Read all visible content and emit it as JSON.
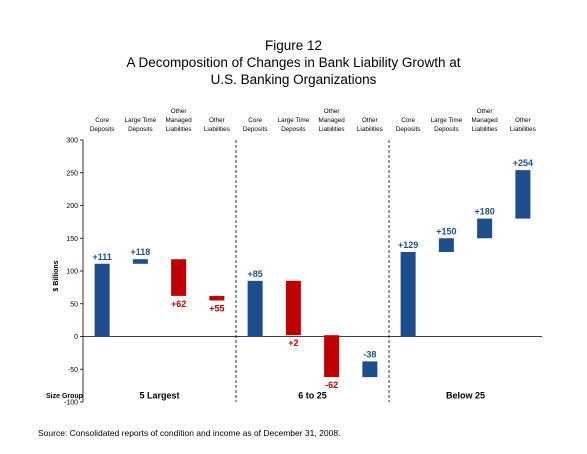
{
  "figure_label": "Figure 12",
  "title_line1": "A Decomposition of Changes in Bank Liability Growth at",
  "title_line2": "U.S. Banking Organizations",
  "source": "Source: Consolidated reports of condition and income as of December 31, 2008.",
  "colors": {
    "positive": "#1f4e8c",
    "negative": "#c00000",
    "axis": "#000000"
  },
  "chart_data": {
    "type": "bar",
    "subtype": "waterfall",
    "title": "A Decomposition of Changes in Bank Liability Growth at U.S. Banking Organizations",
    "ylabel": "$ Billions",
    "ylim": [
      -100,
      300
    ],
    "yticks": [
      -100,
      -50,
      0,
      50,
      100,
      150,
      200,
      250,
      300
    ],
    "grid": false,
    "size_group_label": "Size Group",
    "category_labels": [
      [
        "Core",
        "Deposits"
      ],
      [
        "Large Time",
        "Deposits"
      ],
      [
        "Other",
        "Managed",
        "Liabilities"
      ],
      [
        "Other",
        "Liabilities"
      ]
    ],
    "groups": [
      {
        "name": "5 Largest",
        "bars": [
          {
            "start": 0,
            "end": 111,
            "label": "+111",
            "sign": "positive"
          },
          {
            "start": 111,
            "end": 118,
            "label": "+118",
            "sign": "positive"
          },
          {
            "start": 118,
            "end": 62,
            "label": "+62",
            "sign": "negative"
          },
          {
            "start": 62,
            "end": 55,
            "label": "+55",
            "sign": "negative"
          }
        ]
      },
      {
        "name": "6 to 25",
        "bars": [
          {
            "start": 0,
            "end": 85,
            "label": "+85",
            "sign": "positive"
          },
          {
            "start": 85,
            "end": 2,
            "label": "+2",
            "sign": "negative"
          },
          {
            "start": 2,
            "end": -62,
            "label": "-62",
            "sign": "negative"
          },
          {
            "start": -62,
            "end": -38,
            "label": "-38",
            "sign": "positive"
          }
        ]
      },
      {
        "name": "Below 25",
        "bars": [
          {
            "start": 0,
            "end": 129,
            "label": "+129",
            "sign": "positive"
          },
          {
            "start": 129,
            "end": 150,
            "label": "+150",
            "sign": "positive"
          },
          {
            "start": 150,
            "end": 180,
            "label": "+180",
            "sign": "positive"
          },
          {
            "start": 180,
            "end": 254,
            "label": "+254",
            "sign": "positive"
          }
        ]
      }
    ]
  }
}
